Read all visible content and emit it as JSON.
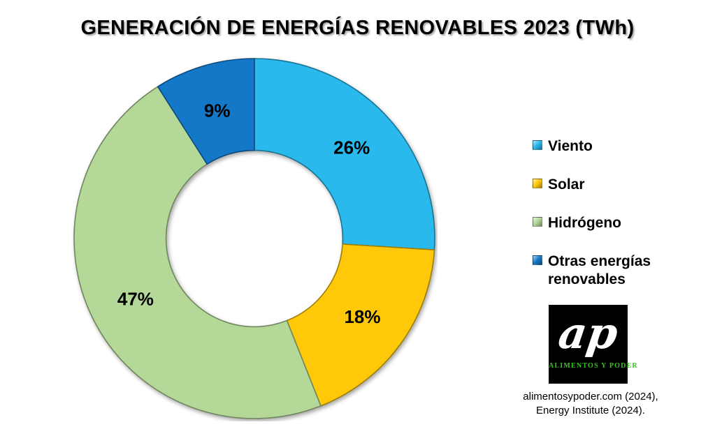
{
  "title": "GENERACIÓN DE ENERGÍAS RENOVABLES 2023 (TWh)",
  "chart_data": {
    "type": "pie",
    "subtype": "donut",
    "title": "GENERACIÓN DE ENERGÍAS RENOVABLES 2023 (TWh)",
    "unit": "TWh",
    "start_angle_deg": 0,
    "direction": "clockwise",
    "inner_radius_ratio": 0.49,
    "label_radius_ratio": 0.74,
    "legend_position": "right",
    "slices": [
      {
        "slug": "viento",
        "label": "Viento",
        "value_pct": 26,
        "data_label": "26%",
        "color": "#29B9ED"
      },
      {
        "slug": "solar",
        "label": "Solar",
        "value_pct": 18,
        "data_label": "18%",
        "color": "#FFC90A"
      },
      {
        "slug": "hidrogeno",
        "label": "Hidrógeno",
        "value_pct": 47,
        "data_label": "47%",
        "color": "#B4D898"
      },
      {
        "slug": "otras-energias-renovables",
        "label": "Otras energías renovables",
        "value_pct": 9,
        "data_label": "9%",
        "color": "#1378C8"
      }
    ]
  },
  "logo": {
    "monogram": "ap",
    "name": "ALIMENTOS Y PODER",
    "bg_color": "#000000",
    "name_color": "#3CBE26"
  },
  "source": {
    "line1": "alimentosypoder.com (2024),",
    "line2": "Energy Institute (2024)."
  }
}
